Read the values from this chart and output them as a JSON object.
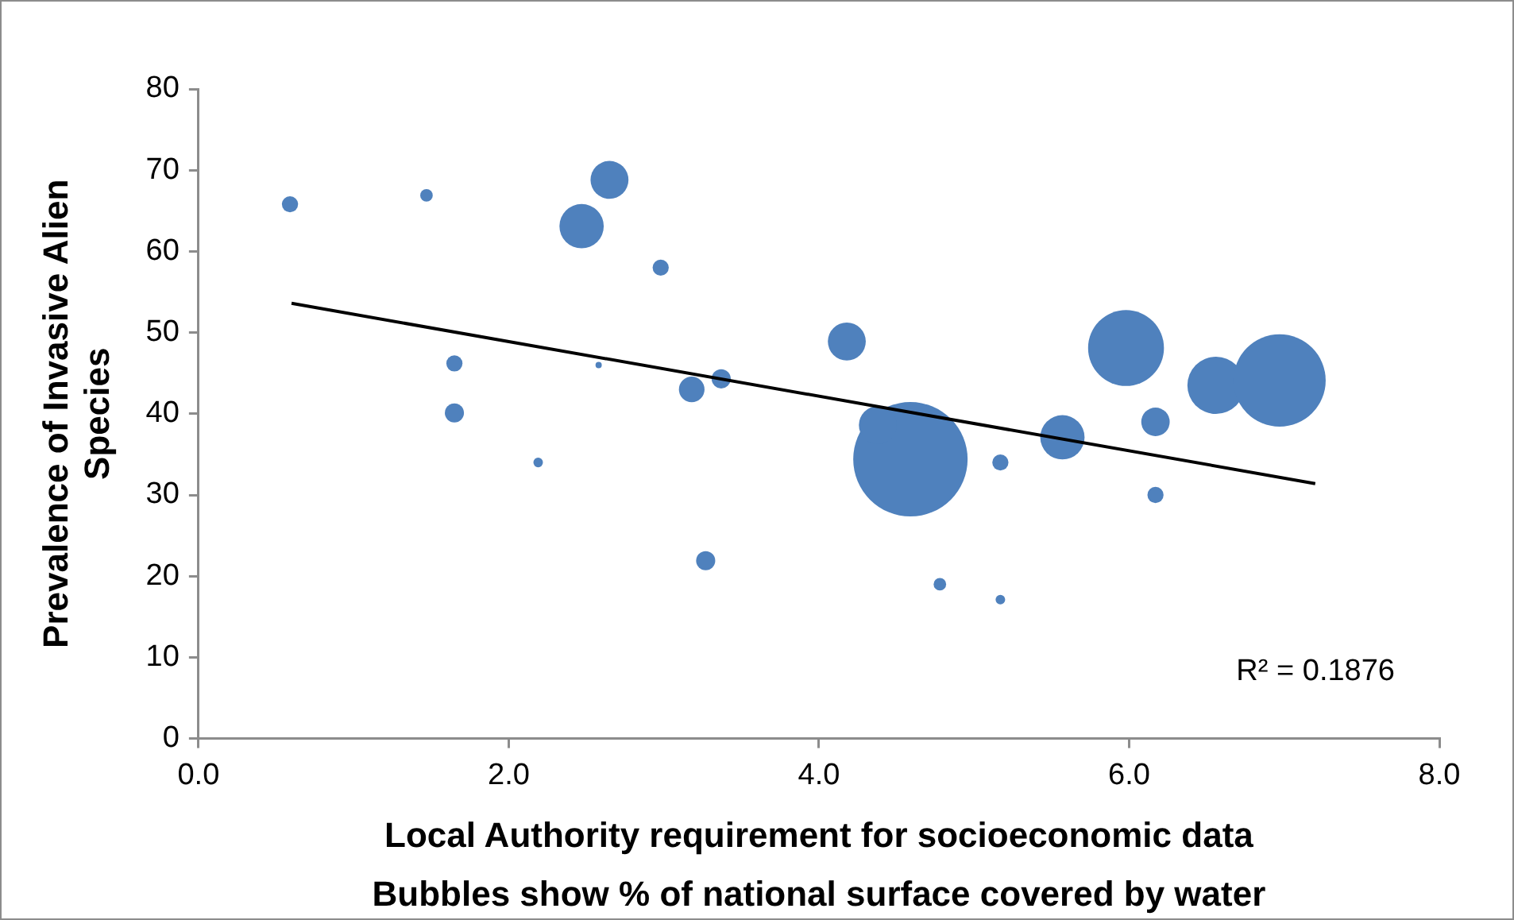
{
  "chart_data": {
    "type": "bubble",
    "xlabel": "Local Authority requirement for socioeconomic data",
    "ylabel": "Prevalence of Invasive Alien Species",
    "annotations": [
      "Bubbles show % of national surface covered by water",
      "R² = 0.1876"
    ],
    "xlim": [
      0,
      8
    ],
    "xticks": [
      {
        "value": 0,
        "label": "0.0"
      },
      {
        "value": 2,
        "label": "2.0"
      },
      {
        "value": 4,
        "label": "4.0"
      },
      {
        "value": 6,
        "label": "6.0"
      },
      {
        "value": 8,
        "label": "8.0"
      }
    ],
    "ylim": [
      0,
      80
    ],
    "yticks": [
      0,
      10,
      20,
      30,
      40,
      50,
      60,
      70,
      80
    ],
    "grid": false,
    "legend": false,
    "series": [
      {
        "color": "#4f81bd",
        "x": [
          0.59,
          1.47,
          2.65,
          2.47,
          2.98,
          1.65,
          1.65,
          2.19,
          2.58,
          3.18,
          3.37,
          3.27,
          4.18,
          4.59,
          4.38,
          5.17,
          5.57,
          5.98,
          6.17,
          6.17,
          6.56,
          6.97,
          4.78,
          5.17
        ],
        "values": [
          65.8,
          66.9,
          68.8,
          63.1,
          58.0,
          46.2,
          40.1,
          34.0,
          46.0,
          43.0,
          44.3,
          21.9,
          48.9,
          34.4,
          38.6,
          34.0,
          37.1,
          48.1,
          39.0,
          30.0,
          43.5,
          44.1,
          19.0,
          17.1
        ],
        "sizes": [
          0.02,
          0.012,
          0.11,
          0.15,
          0.02,
          0.02,
          0.028,
          0.007,
          0.003,
          0.05,
          0.028,
          0.028,
          0.11,
          1,
          0.11,
          0.02,
          0.15,
          0.44,
          0.062,
          0.02,
          0.25,
          0.65,
          0.012,
          0.007
        ]
      },
      {
        "type": "line",
        "color": "#000000",
        "x": [
          0.6,
          7.2
        ],
        "values": [
          53.6,
          31.4
        ],
        "marker": "none",
        "line_style": "solid"
      }
    ]
  }
}
